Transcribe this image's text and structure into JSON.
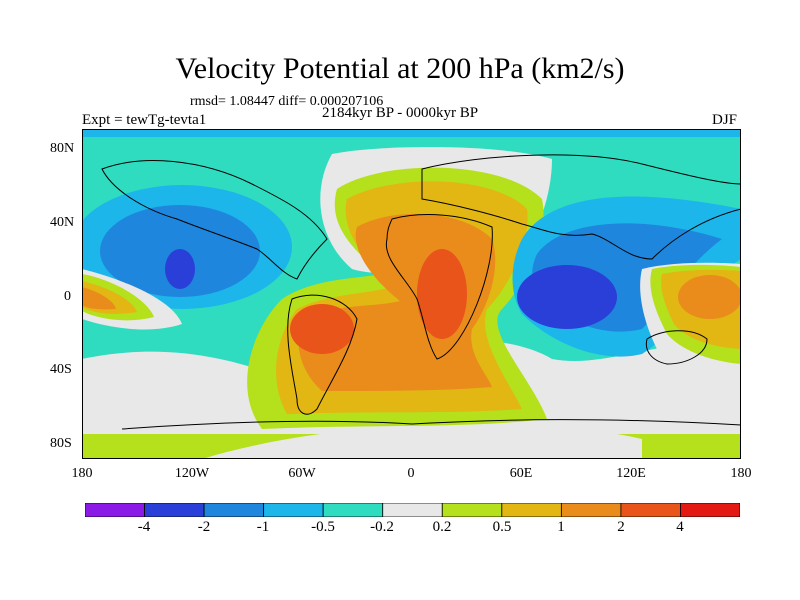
{
  "header": {
    "title": "Velocity Potential at 200 hPa (km2/s)",
    "stats": "rmsd= 1.08447 diff= 0.000207106",
    "period": "2184kyr BP - 0000kyr BP",
    "experiment": "Expt = tewTg-tevta1",
    "season": "DJF"
  },
  "axes": {
    "lat_labels": [
      "80N",
      "40N",
      "0",
      "40S",
      "80S"
    ],
    "lon_labels": [
      "180",
      "120W",
      "60W",
      "0",
      "60E",
      "120E",
      "180"
    ]
  },
  "colorbar": {
    "labels": [
      "-4",
      "-2",
      "-1",
      "-0.5",
      "-0.2",
      "0.2",
      "0.5",
      "1",
      "2",
      "4"
    ],
    "colors": [
      "#8b1ae6",
      "#2a3fd8",
      "#1e86dd",
      "#1cb6ea",
      "#2fdcc0",
      "#e8e8e8",
      "#b4e01c",
      "#e2b613",
      "#e98c1c",
      "#e8541a",
      "#e41913"
    ]
  },
  "map": {
    "projection": "cylindrical equidistant",
    "lon_range": [
      -180,
      180
    ],
    "lat_range": [
      -90,
      90
    ]
  }
}
